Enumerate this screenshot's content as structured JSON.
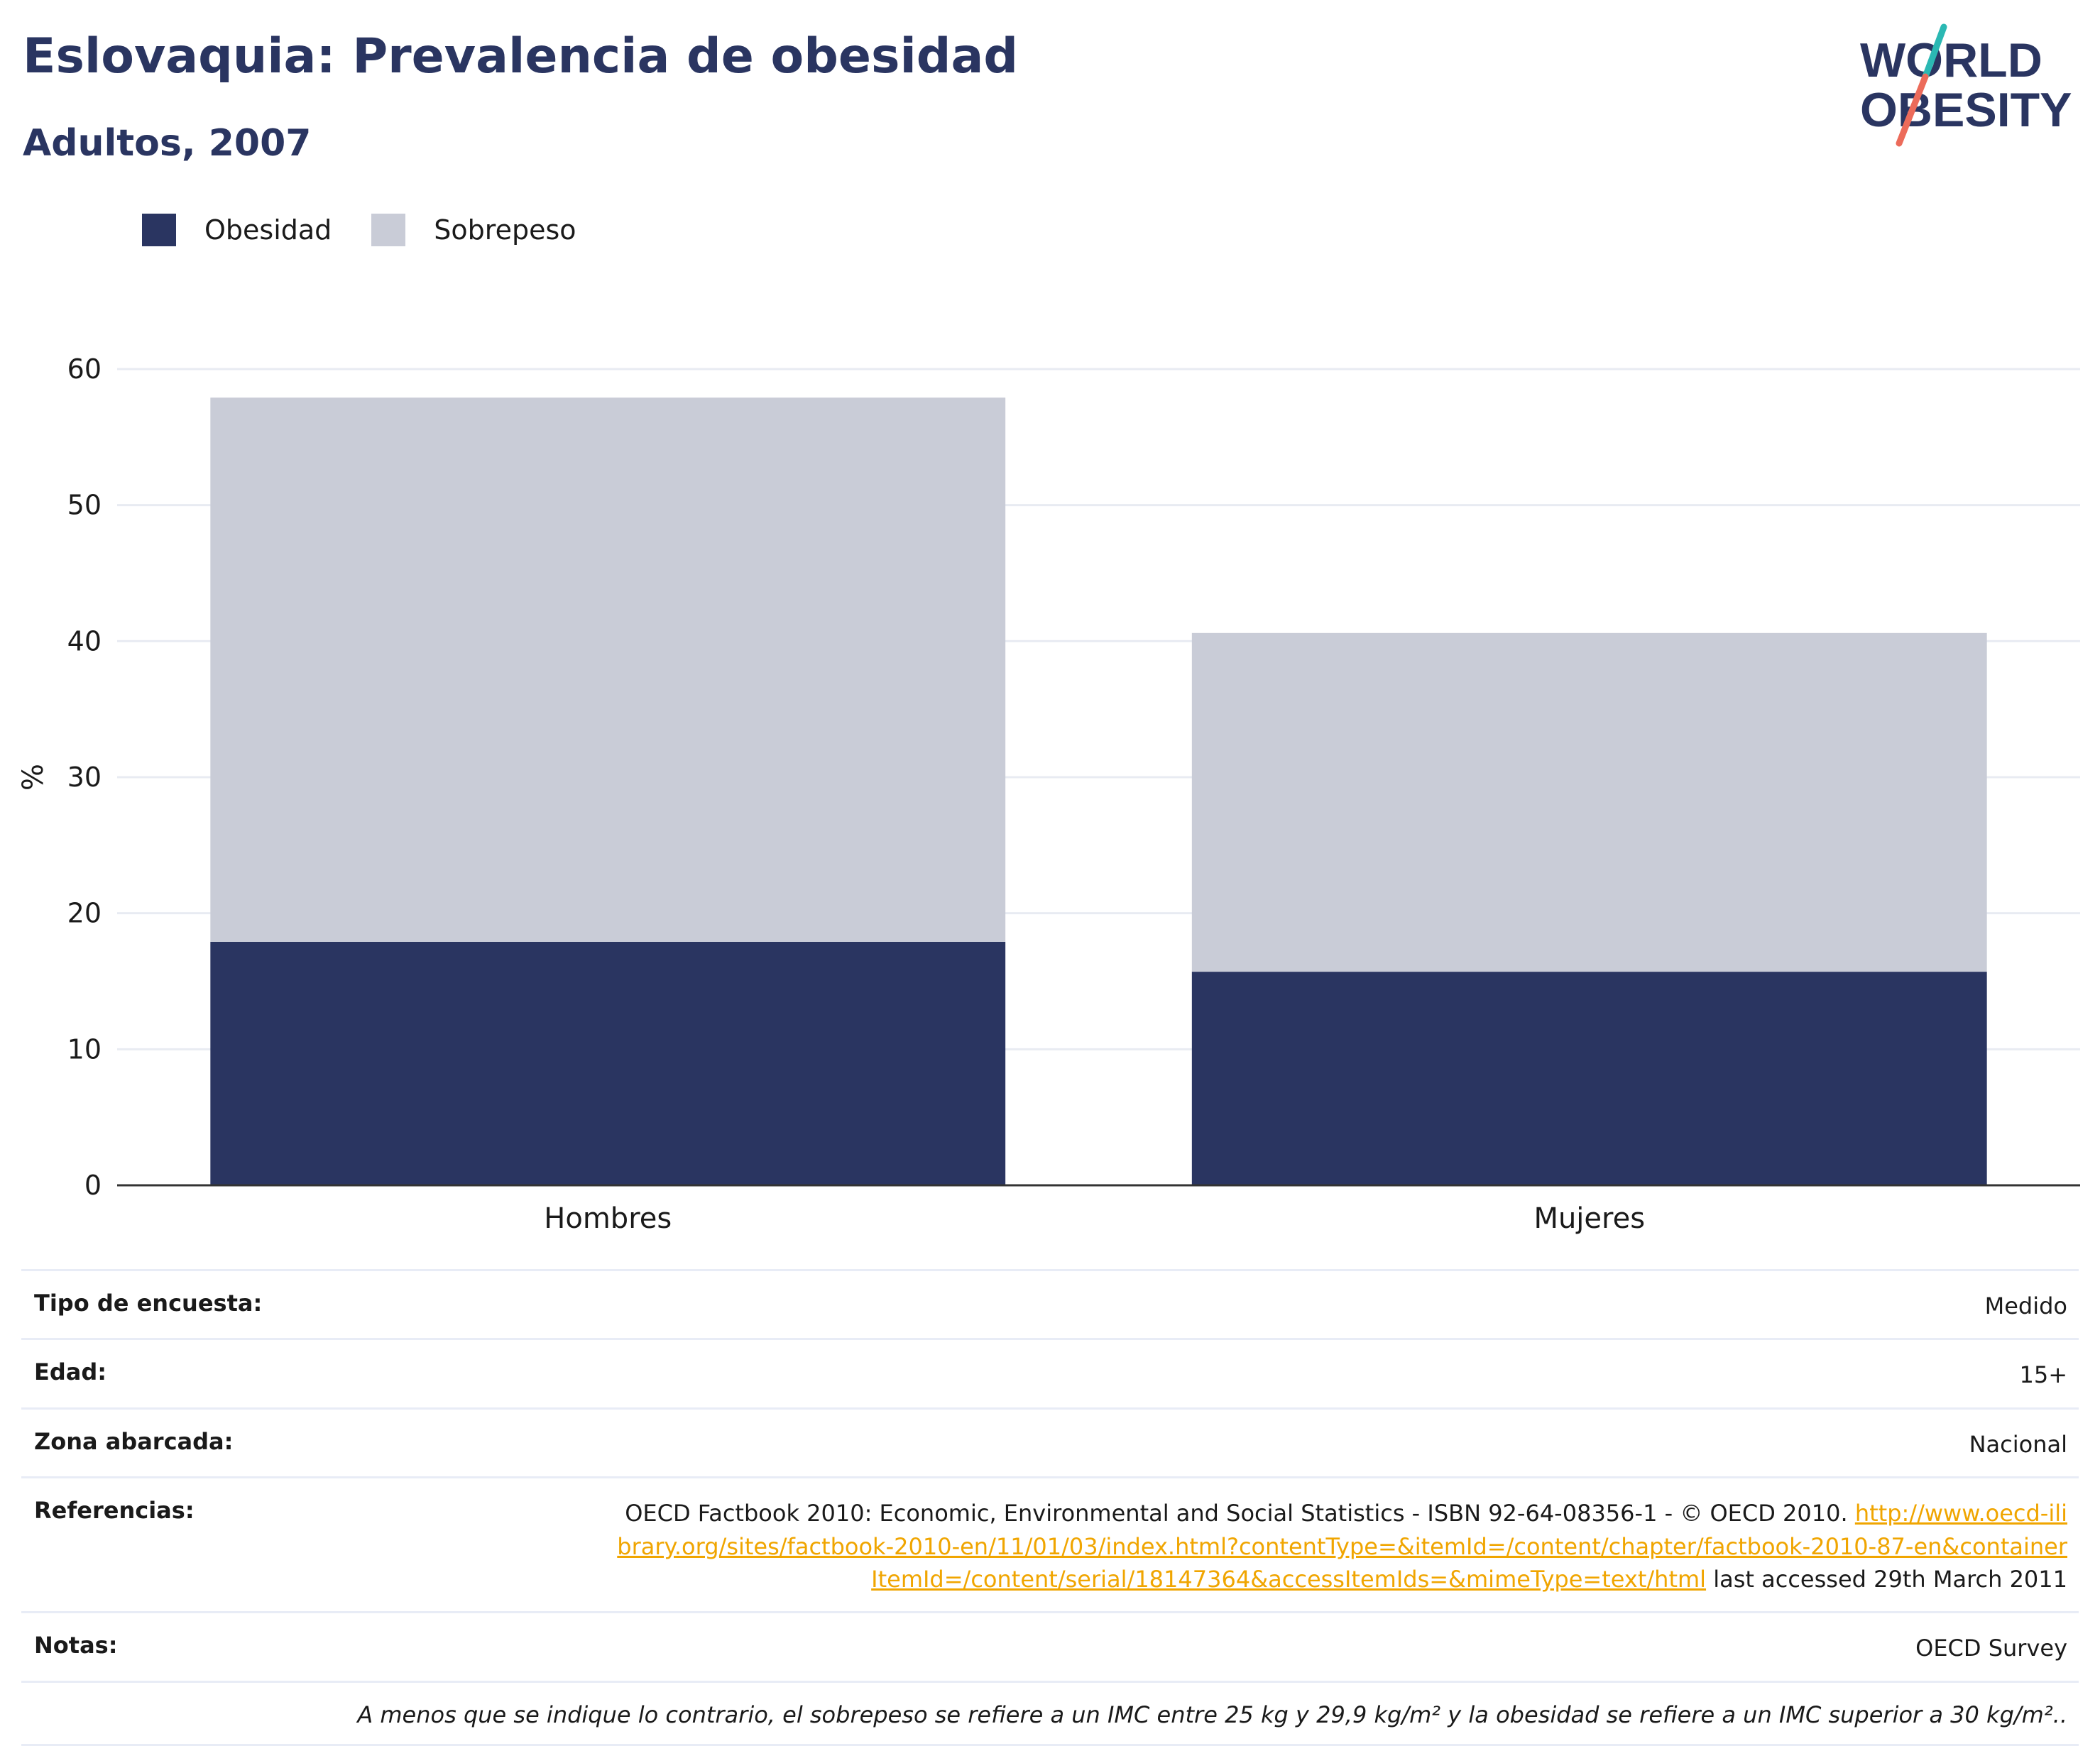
{
  "header": {
    "title": "Eslovaquia: Prevalencia de obesidad",
    "subtitle": "Adultos, 2007",
    "logo_line1": "WORLD",
    "logo_line2": "OBESITY"
  },
  "legend": [
    {
      "label": "Obesidad",
      "color": "#2a3561"
    },
    {
      "label": "Sobrepeso",
      "color": "#c9ccd7"
    }
  ],
  "chart_data": {
    "type": "bar",
    "stacked": true,
    "categories": [
      "Hombres",
      "Mujeres"
    ],
    "series": [
      {
        "name": "Obesidad",
        "color": "#2a3561",
        "values": [
          17.9,
          15.7
        ]
      },
      {
        "name": "Sobrepeso",
        "color": "#c9ccd7",
        "values": [
          40.0,
          24.9
        ]
      }
    ],
    "ylabel": "%",
    "ylim": [
      0,
      60
    ],
    "yticks": [
      0,
      10,
      20,
      30,
      40,
      50,
      60
    ],
    "grid": true,
    "legend_position": "top-left"
  },
  "info": {
    "survey_type_label": "Tipo de encuesta:",
    "survey_type_value": "Medido",
    "age_label": "Edad:",
    "age_value": "15+",
    "area_label": "Zona abarcada:",
    "area_value": "Nacional",
    "refs_label": "Referencias:",
    "refs_text": "OECD Factbook 2010: Economic, Environmental and Social Statistics - ISBN 92-64-08356-1 - © OECD 2010. ",
    "refs_link": "http://www.oecd-ilibrary.org/sites/factbook-2010-en/11/01/03/index.html?contentType=&itemId=/content/chapter/factbook-2010-87-en&containerItemId=/content/serial/18147364&accessItemIds=&mimeType=text/html",
    "refs_suffix": " last accessed 29th March 2011",
    "notes_label": "Notas:",
    "notes_value": "OECD Survey",
    "footnote": "A menos que se indique lo contrario, el sobrepeso se refiere a un IMC entre 25 kg y 29,9 kg/m² y la obesidad se refiere a un IMC superior a 30 kg/m².."
  }
}
